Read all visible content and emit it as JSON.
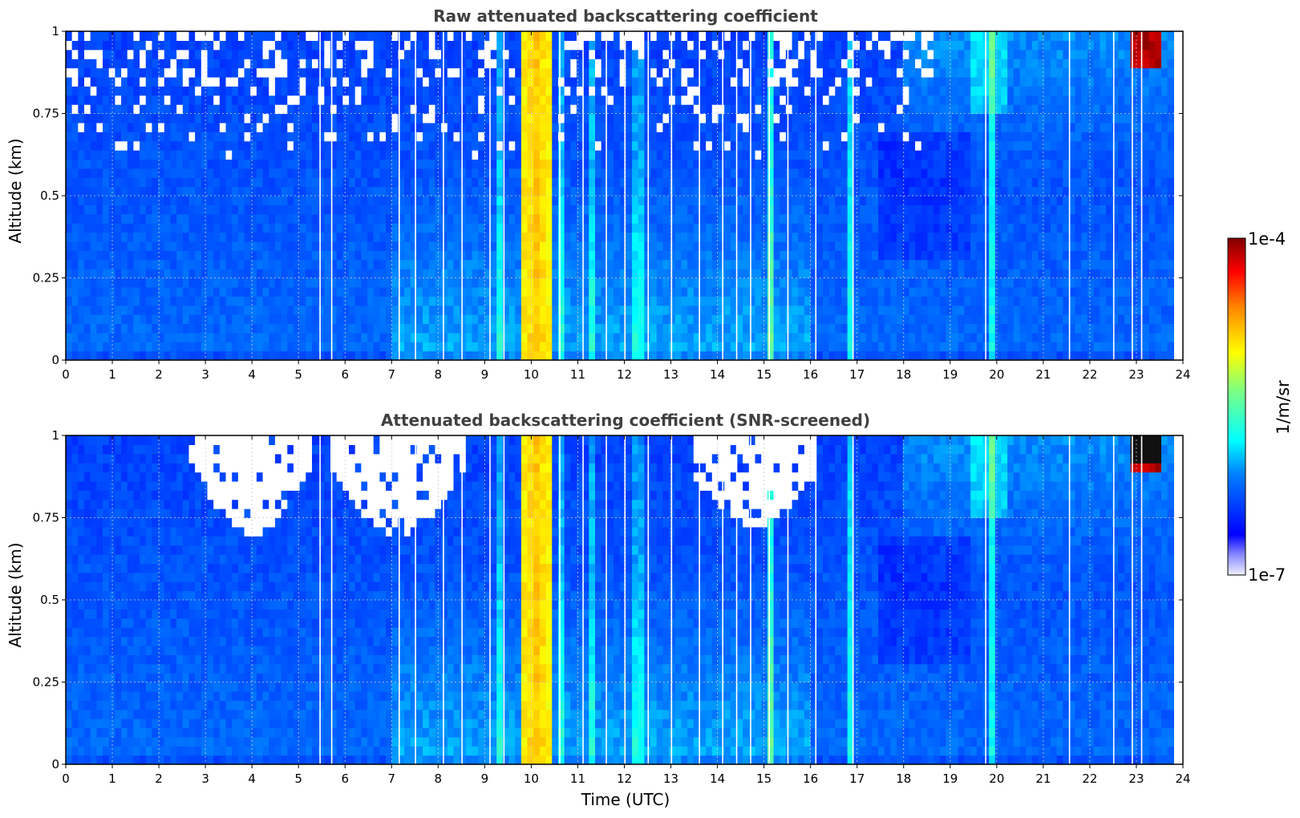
{
  "chart_data": [
    {
      "type": "heatmap",
      "title": "Raw attenuated backscattering coefficient",
      "xlabel": "",
      "ylabel": "Altitude (km)",
      "xlim": [
        0,
        24
      ],
      "ylim": [
        0,
        1
      ],
      "xticks": [
        "0",
        "1",
        "2",
        "3",
        "4",
        "5",
        "6",
        "7",
        "8",
        "9",
        "10",
        "11",
        "12",
        "13",
        "14",
        "15",
        "16",
        "17",
        "18",
        "19",
        "20",
        "21",
        "22",
        "23",
        "24"
      ],
      "yticks": [
        "0",
        "0.25",
        "0.5",
        "0.75",
        "1"
      ],
      "grid": true,
      "data_end_hour": 23.8,
      "colorscale": "jet",
      "screened": false
    },
    {
      "type": "heatmap",
      "title": "Attenuated backscattering coefficient (SNR-screened)",
      "xlabel": "Time (UTC)",
      "ylabel": "Altitude (km)",
      "xlim": [
        0,
        24
      ],
      "ylim": [
        0,
        1
      ],
      "xticks": [
        "0",
        "1",
        "2",
        "3",
        "4",
        "5",
        "6",
        "7",
        "8",
        "9",
        "10",
        "11",
        "12",
        "13",
        "14",
        "15",
        "16",
        "17",
        "18",
        "19",
        "20",
        "21",
        "22",
        "23",
        "24"
      ],
      "yticks": [
        "0",
        "0.25",
        "0.5",
        "0.75",
        "1"
      ],
      "grid": true,
      "data_end_hour": 23.8,
      "colorscale": "jet",
      "screened": true
    }
  ],
  "colorbar": {
    "label": "1/m/sr",
    "max_label": "1e-4",
    "min_label": "1e-7",
    "placement": "right"
  },
  "features": {
    "aerosol_plume_hours": [
      9.9,
      10.3
    ],
    "cloud_top_hours": [
      22.85,
      23.6
    ],
    "gap_hours": [
      5.45,
      5.7,
      7.15,
      7.5,
      8.1,
      8.5,
      9.1,
      9.4,
      10.6,
      11.1,
      11.6,
      12.0,
      12.5,
      13.0,
      13.6,
      14.1,
      14.4,
      14.7,
      15.1,
      15.5,
      16.1,
      16.9,
      19.75,
      21.55,
      22.5,
      22.9,
      23.1
    ]
  }
}
